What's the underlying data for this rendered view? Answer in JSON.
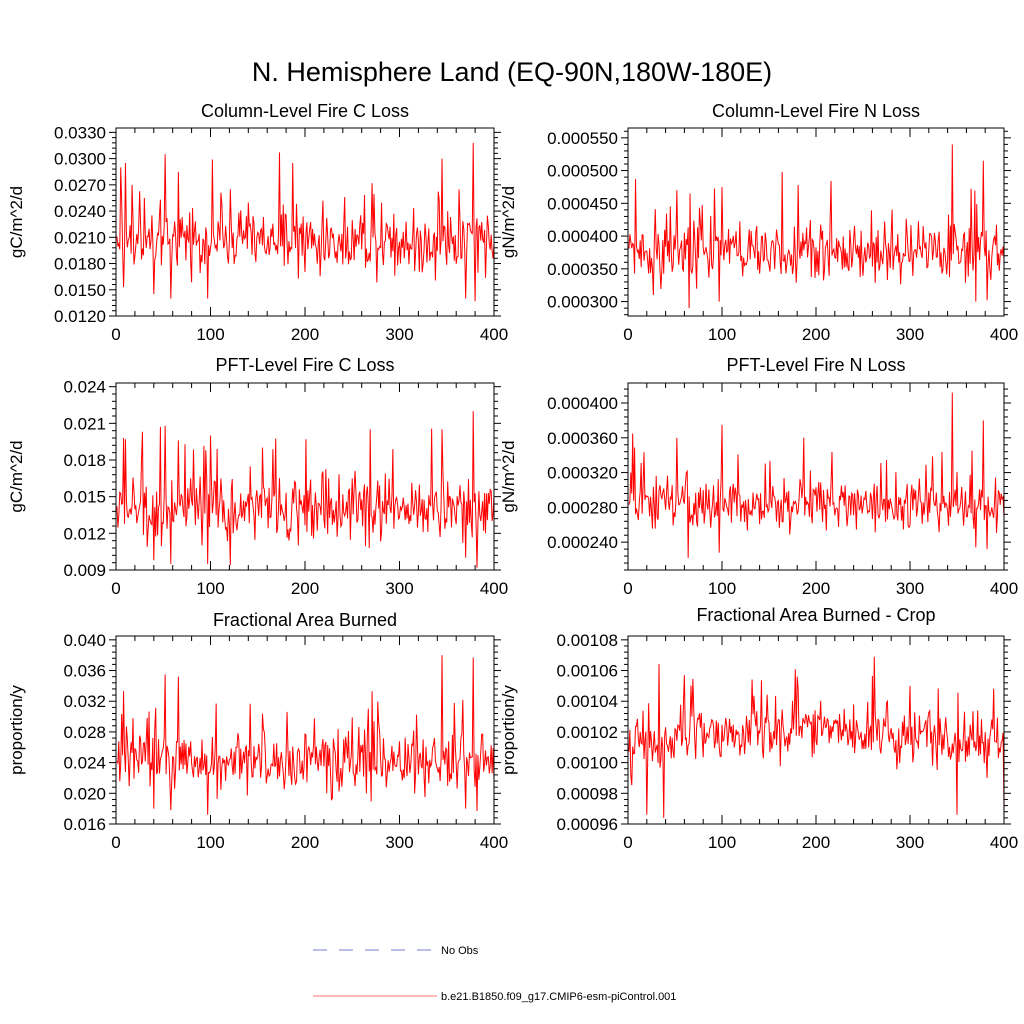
{
  "title": "N. Hemisphere Land (EQ-90N,180W-180E)",
  "series_color": "#ff0000",
  "obs_color": "#7b7bd6",
  "legend": [
    {
      "label": "No Obs",
      "style": "dashed",
      "color": "#7b7bd6"
    },
    {
      "label": "b.e21.B1850.f09_g17.CMIP6-esm-piControl.001",
      "style": "solid",
      "color": "#ff6f6f"
    }
  ],
  "chart_data": [
    {
      "type": "line",
      "title": "Column-Level Fire C Loss",
      "ylabel": "gC/m^2/d",
      "xlim": [
        0,
        400
      ],
      "ylim": [
        0.012,
        0.0335
      ],
      "xticks": [
        0,
        100,
        200,
        300,
        400
      ],
      "xtick_labels": [
        "0",
        "100",
        "200",
        "300",
        "400"
      ],
      "yticks": [
        0.012,
        0.015,
        0.018,
        0.021,
        0.024,
        0.027,
        0.03,
        0.033
      ],
      "ytick_labels": [
        "0.0120",
        "0.0150",
        "0.0180",
        "0.0210",
        "0.0240",
        "0.0270",
        "0.0300",
        "0.0330"
      ],
      "series": [
        {
          "name": "b.e21.B1850.f09_g17.CMIP6-esm-piControl.001",
          "x_start": 1,
          "x_end": 400,
          "mean": 0.0205,
          "spread": 0.0025,
          "peaks": [
            [
              5,
              0.029
            ],
            [
              10,
              0.0295
            ],
            [
              17,
              0.027
            ],
            [
              52,
              0.0305
            ],
            [
              66,
              0.0285
            ],
            [
              121,
              0.0265
            ],
            [
              187,
              0.0295
            ],
            [
              271,
              0.0272
            ],
            [
              345,
              0.03
            ],
            [
              378,
              0.0318
            ]
          ],
          "troughs": [
            [
              8,
              0.0153
            ],
            [
              40,
              0.0145
            ],
            [
              58,
              0.014
            ],
            [
              97,
              0.014
            ],
            [
              121,
              0.0142
            ],
            [
              370,
              0.014
            ],
            [
              380,
              0.0137
            ]
          ]
        }
      ]
    },
    {
      "type": "line",
      "title": "Column-Level Fire N Loss",
      "ylabel": "gN/m^2/d",
      "xlim": [
        0,
        400
      ],
      "ylim": [
        0.000278,
        0.000565
      ],
      "xticks": [
        0,
        100,
        200,
        300,
        400
      ],
      "xtick_labels": [
        "0",
        "100",
        "200",
        "300",
        "400"
      ],
      "yticks": [
        0.0003,
        0.00035,
        0.0004,
        0.00045,
        0.0005,
        0.00055
      ],
      "ytick_labels": [
        "0.000300",
        "0.000350",
        "0.000400",
        "0.000450",
        "0.000500",
        "0.000550"
      ],
      "series": [
        {
          "name": "b.e21.B1850.f09_g17.CMIP6-esm-piControl.001",
          "x_start": 1,
          "x_end": 400,
          "mean": 0.000375,
          "spread": 3.2e-05,
          "peaks": [
            [
              8,
              0.000487
            ],
            [
              52,
              0.00047
            ],
            [
              66,
              0.000465
            ],
            [
              100,
              0.000475
            ],
            [
              345,
              0.00054
            ],
            [
              378,
              0.000515
            ]
          ],
          "troughs": [
            [
              27,
              0.00031
            ],
            [
              65,
              0.00029
            ],
            [
              97,
              0.0003
            ],
            [
              370,
              0.0003
            ],
            [
              382,
              0.000302
            ]
          ]
        }
      ]
    },
    {
      "type": "line",
      "title": "PFT-Level Fire C Loss",
      "ylabel": "gC/m^2/d",
      "xlim": [
        0,
        400
      ],
      "ylim": [
        0.009,
        0.0243
      ],
      "xticks": [
        0,
        100,
        200,
        300,
        400
      ],
      "xtick_labels": [
        "0",
        "100",
        "200",
        "300",
        "400"
      ],
      "yticks": [
        0.009,
        0.012,
        0.015,
        0.018,
        0.021,
        0.024
      ],
      "ytick_labels": [
        "0.009",
        "0.012",
        "0.015",
        "0.018",
        "0.021",
        "0.024"
      ],
      "series": [
        {
          "name": "b.e21.B1850.f09_g17.CMIP6-esm-piControl.001",
          "x_start": 1,
          "x_end": 400,
          "mean": 0.014,
          "spread": 0.0018,
          "peaks": [
            [
              8,
              0.0198
            ],
            [
              10,
              0.0197
            ],
            [
              52,
              0.0208
            ],
            [
              66,
              0.0196
            ],
            [
              100,
              0.02
            ],
            [
              345,
              0.0205
            ],
            [
              378,
              0.022
            ]
          ],
          "troughs": [
            [
              40,
              0.0098
            ],
            [
              58,
              0.0095
            ],
            [
              97,
              0.0095
            ],
            [
              121,
              0.0094
            ],
            [
              370,
              0.01
            ],
            [
              382,
              0.0092
            ]
          ]
        }
      ]
    },
    {
      "type": "line",
      "title": "PFT-Level Fire N Loss",
      "ylabel": "gN/m^2/d",
      "xlim": [
        0,
        400
      ],
      "ylim": [
        0.000208,
        0.000423
      ],
      "xticks": [
        0,
        100,
        200,
        300,
        400
      ],
      "xtick_labels": [
        "0",
        "100",
        "200",
        "300",
        "400"
      ],
      "yticks": [
        0.00024,
        0.00028,
        0.00032,
        0.00036,
        0.0004
      ],
      "ytick_labels": [
        "0.000240",
        "0.000280",
        "0.000320",
        "0.000360",
        "0.000400"
      ],
      "series": [
        {
          "name": "b.e21.B1850.f09_g17.CMIP6-esm-piControl.001",
          "x_start": 1,
          "x_end": 400,
          "mean": 0.000282,
          "spread": 2e-05,
          "peaks": [
            [
              5,
              0.000365
            ],
            [
              52,
              0.00036
            ],
            [
              100,
              0.000375
            ],
            [
              187,
              0.00036
            ],
            [
              345,
              0.000412
            ],
            [
              378,
              0.00038
            ]
          ],
          "troughs": [
            [
              64,
              0.000222
            ],
            [
              97,
              0.000228
            ],
            [
              370,
              0.000234
            ],
            [
              382,
              0.000232
            ]
          ]
        }
      ]
    },
    {
      "type": "line",
      "title": "Fractional Area Burned",
      "ylabel": "proportion/y",
      "xlim": [
        0,
        400
      ],
      "ylim": [
        0.016,
        0.0405
      ],
      "xticks": [
        0,
        100,
        200,
        300,
        400
      ],
      "xtick_labels": [
        "0",
        "100",
        "200",
        "300",
        "400"
      ],
      "yticks": [
        0.016,
        0.02,
        0.024,
        0.028,
        0.032,
        0.036,
        0.04
      ],
      "ytick_labels": [
        "0.016",
        "0.020",
        "0.024",
        "0.028",
        "0.032",
        "0.036",
        "0.040"
      ],
      "series": [
        {
          "name": "b.e21.B1850.f09_g17.CMIP6-esm-piControl.001",
          "x_start": 1,
          "x_end": 400,
          "mean": 0.0242,
          "spread": 0.0028,
          "peaks": [
            [
              8,
              0.0333
            ],
            [
              52,
              0.0355
            ],
            [
              66,
              0.0352
            ],
            [
              271,
              0.0333
            ],
            [
              345,
              0.038
            ],
            [
              378,
              0.0377
            ]
          ],
          "troughs": [
            [
              40,
              0.018
            ],
            [
              58,
              0.0178
            ],
            [
              97,
              0.0172
            ],
            [
              370,
              0.018
            ],
            [
              382,
              0.0177
            ]
          ]
        }
      ]
    },
    {
      "type": "line",
      "title": "Fractional Area Burned - Crop",
      "ylabel": "proportion/y",
      "xlim": [
        0,
        400
      ],
      "ylim": [
        0.00096,
        0.0010825
      ],
      "xticks": [
        0,
        100,
        200,
        300,
        400
      ],
      "xtick_labels": [
        "0",
        "100",
        "200",
        "300",
        "400"
      ],
      "yticks": [
        0.00096,
        0.00098,
        0.001,
        0.00102,
        0.00104,
        0.00106,
        0.00108
      ],
      "ytick_labels": [
        "0.00096",
        "0.00098",
        "0.00100",
        "0.00102",
        "0.00104",
        "0.00106",
        "0.00108"
      ],
      "series": [
        {
          "name": "b.e21.B1850.f09_g17.CMIP6-esm-piControl.001",
          "x_start": 1,
          "x_end": 400,
          "mean": 0.001014,
          "spread": 1.3e-05,
          "trend": [
            [
              0,
              0.001008
            ],
            [
              60,
              0.001016
            ],
            [
              200,
              0.001022
            ],
            [
              300,
              0.001018
            ],
            [
              400,
              0.001012
            ]
          ],
          "peaks": [
            [
              60,
              0.001057
            ],
            [
              180,
              0.001056
            ],
            [
              262,
              0.001069
            ],
            [
              300,
              0.00105
            ]
          ],
          "troughs": [
            [
              20,
              0.000966
            ],
            [
              38,
              0.000964
            ],
            [
              350,
              0.000966
            ],
            [
              400,
              0.00097
            ]
          ]
        }
      ]
    }
  ]
}
